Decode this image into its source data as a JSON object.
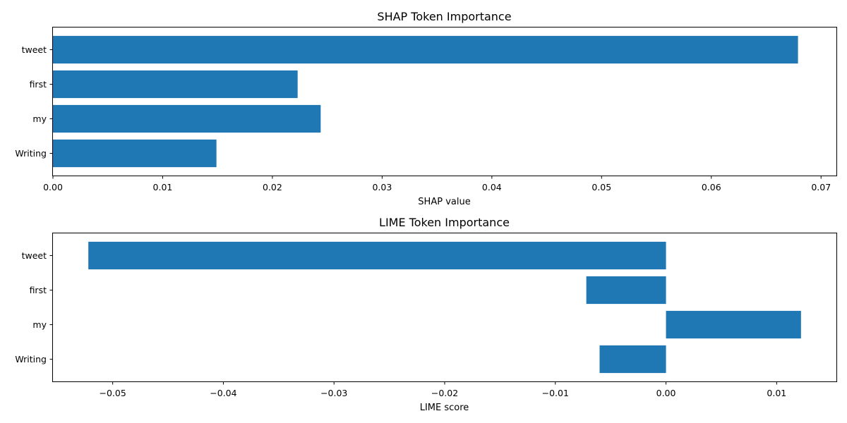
{
  "chart_data": [
    {
      "type": "bar",
      "orientation": "horizontal",
      "title": "SHAP Token Importance",
      "xlabel": "SHAP value",
      "ylabel": "",
      "categories": [
        "tweet",
        "first",
        "my",
        "Writing"
      ],
      "values": [
        0.0679,
        0.0223,
        0.0244,
        0.0149
      ],
      "xlim": [
        0.0,
        0.0714
      ],
      "xticks": [
        0.0,
        0.01,
        0.02,
        0.03,
        0.04,
        0.05,
        0.06,
        0.07
      ],
      "xtick_labels": [
        "0.00",
        "0.01",
        "0.02",
        "0.03",
        "0.04",
        "0.05",
        "0.06",
        "0.07"
      ],
      "grid": false,
      "bar_color": "#1f77b4"
    },
    {
      "type": "bar",
      "orientation": "horizontal",
      "title": "LIME Token Importance",
      "xlabel": "LIME score",
      "ylabel": "",
      "categories": [
        "tweet",
        "first",
        "my",
        "Writing"
      ],
      "values": [
        -0.0522,
        -0.0072,
        0.0122,
        -0.006
      ],
      "xlim": [
        -0.0554,
        0.0154
      ],
      "xticks": [
        -0.05,
        -0.04,
        -0.03,
        -0.02,
        -0.01,
        0.0,
        0.01
      ],
      "xtick_labels": [
        "−0.05",
        "−0.04",
        "−0.03",
        "−0.02",
        "−0.01",
        "0.00",
        "0.01"
      ],
      "grid": false,
      "bar_color": "#1f77b4"
    }
  ]
}
